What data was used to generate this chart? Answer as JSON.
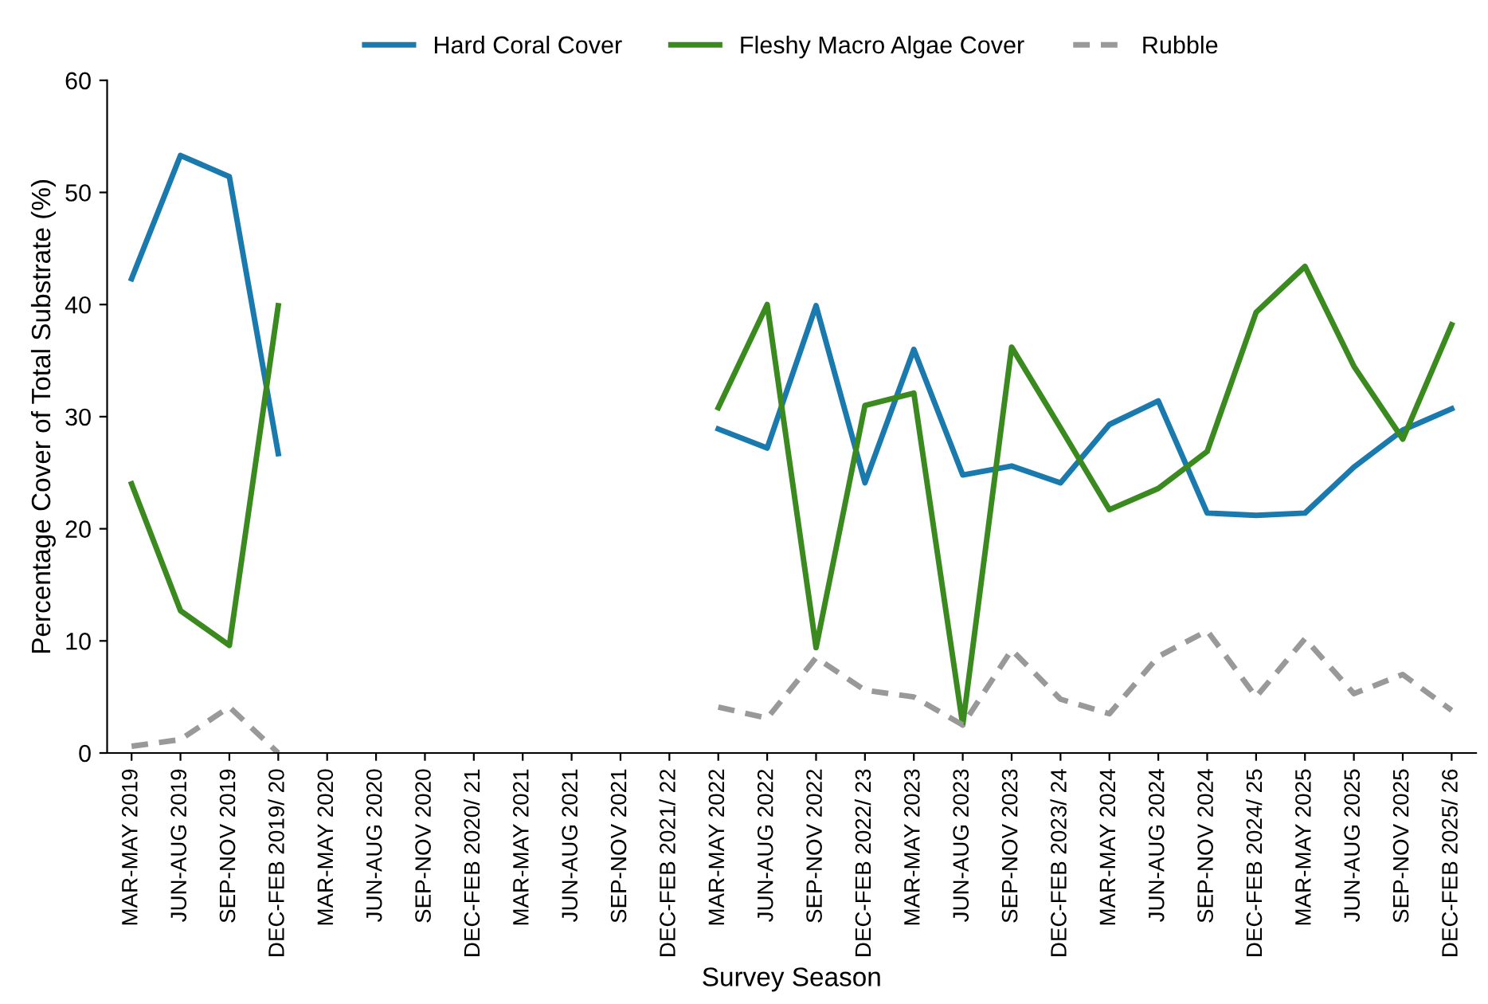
{
  "chart_data": {
    "type": "line",
    "xlabel": "Survey Season",
    "ylabel": "Percentage Cover of Total Substrate (%)",
    "categories": [
      "MAR-MAY 2019",
      "JUN-AUG 2019",
      "SEP-NOV 2019",
      "DEC-FEB 2019/ 20",
      "MAR-MAY 2020",
      "JUN-AUG 2020",
      "SEP-NOV 2020",
      "DEC-FEB 2020/ 21",
      "MAR-MAY 2021",
      "JUN-AUG 2021",
      "SEP-NOV 2021",
      "DEC-FEB 2021/ 22",
      "MAR-MAY 2022",
      "JUN-AUG 2022",
      "SEP-NOV 2022",
      "DEC-FEB 2022/ 23",
      "MAR-MAY 2023",
      "JUN-AUG 2023",
      "SEP-NOV 2023",
      "DEC-FEB 2023/ 24",
      "MAR-MAY 2024",
      "JUN-AUG 2024",
      "SEP-NOV 2024",
      "DEC-FEB 2024/ 25",
      "MAR-MAY 2025",
      "JUN-AUG 2025",
      "SEP-NOV 2025",
      "DEC-FEB 2025/ 26"
    ],
    "series": [
      {
        "name": "Hard Coral Cover",
        "color": "#1a7aad",
        "line_style": "solid",
        "values": [
          42.3,
          53.3,
          51.4,
          26.7,
          null,
          null,
          null,
          null,
          null,
          null,
          null,
          null,
          28.9,
          27.2,
          39.9,
          24.1,
          36.0,
          24.8,
          25.6,
          24.1,
          29.3,
          31.4,
          21.4,
          21.2,
          21.4,
          25.5,
          28.8,
          30.7
        ]
      },
      {
        "name": "Fleshy Macro Algae Cover",
        "color": "#3a8a1f",
        "line_style": "solid",
        "values": [
          24.0,
          12.7,
          9.6,
          39.9,
          null,
          null,
          null,
          null,
          null,
          null,
          null,
          null,
          30.8,
          40.0,
          9.4,
          31.0,
          32.1,
          2.5,
          36.2,
          29.0,
          21.7,
          23.6,
          26.9,
          39.3,
          43.4,
          34.5,
          28.0,
          38.2
        ]
      },
      {
        "name": "Rubble",
        "color": "#999999",
        "line_style": "dashed",
        "values": [
          0.6,
          1.2,
          4.1,
          0.0,
          null,
          null,
          null,
          null,
          null,
          null,
          null,
          null,
          4.1,
          3.1,
          8.5,
          5.6,
          5.0,
          2.5,
          9.2,
          4.8,
          3.5,
          8.6,
          10.9,
          5.0,
          10.2,
          5.3,
          7.0,
          3.8
        ]
      }
    ],
    "ylim": [
      0,
      60
    ],
    "yticks": [
      0,
      10,
      20,
      30,
      40,
      50,
      60
    ],
    "legend": "top",
    "marker": "none"
  }
}
